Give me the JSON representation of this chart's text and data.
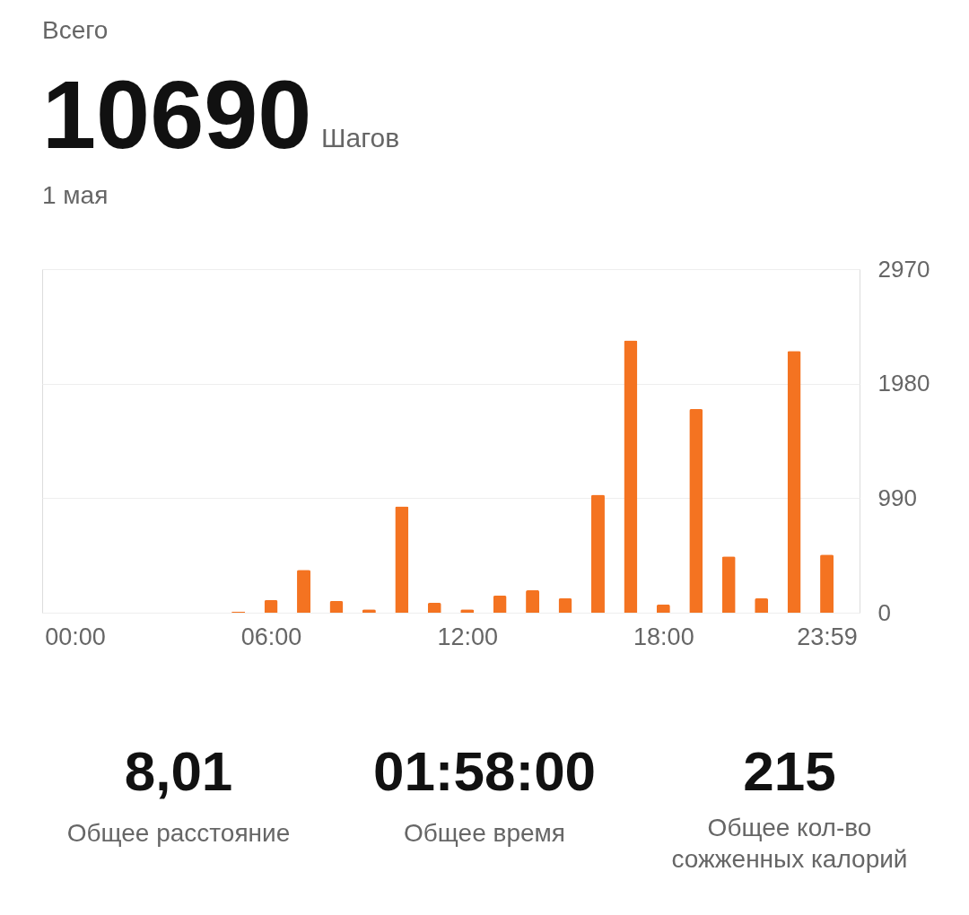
{
  "chart_data": {
    "type": "bar",
    "title": "Всего",
    "categories": [
      "00:00",
      null,
      null,
      null,
      null,
      null,
      "06:00",
      null,
      null,
      null,
      null,
      null,
      "12:00",
      null,
      null,
      null,
      null,
      null,
      "18:00",
      null,
      null,
      null,
      null,
      "23:59"
    ],
    "series": [
      {
        "color": "#f47321",
        "values": [
          0,
          0,
          0,
          0,
          0,
          10,
          108,
          370,
          100,
          30,
          918,
          85,
          30,
          147,
          193,
          124,
          1019,
          2354,
          70,
          1760,
          486,
          124,
          2262,
          502
        ]
      }
    ],
    "ylim": [
      0,
      2970
    ],
    "yticks": [
      0,
      990,
      1980,
      2970
    ],
    "grid": "y",
    "annotations": [
      "10690",
      "Шагов",
      "1 мая",
      "8,01",
      "Общее расстояние",
      "01:58:00",
      "Общее время",
      "215",
      "Общее кол-во\nсожженных калорий"
    ]
  }
}
